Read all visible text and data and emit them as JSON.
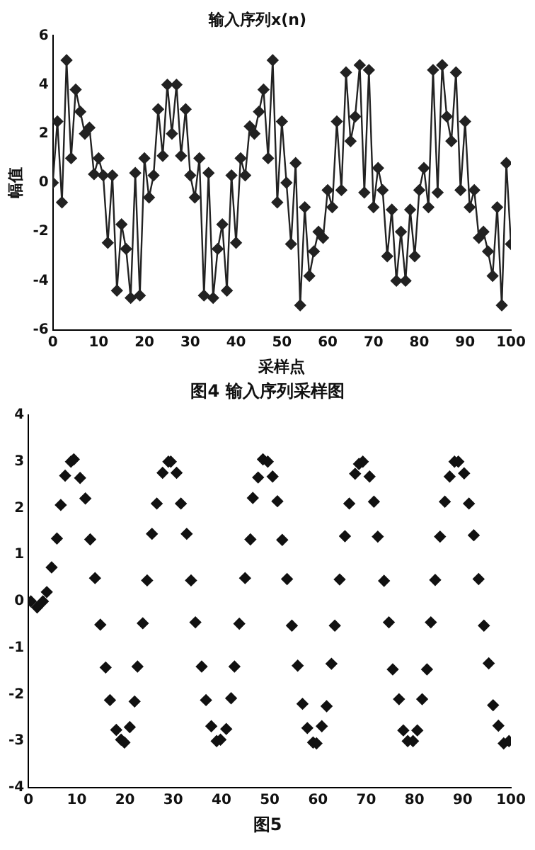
{
  "chart_data": [
    {
      "type": "line",
      "title": "输入序列x(n)",
      "xlabel": "采样点",
      "ylabel": "幅值",
      "annotations": [
        "图4 输入序列采样图"
      ],
      "color": "#222222",
      "marker": "diamond",
      "line_style": "solid",
      "x": [
        0,
        1,
        2,
        3,
        4,
        5,
        6,
        7,
        8,
        9,
        10,
        11,
        12,
        13,
        14,
        15,
        16,
        17,
        18,
        19,
        20,
        21,
        22,
        23,
        24,
        25,
        26,
        27,
        28,
        29,
        30,
        31,
        32,
        33,
        34,
        35,
        36,
        37,
        38,
        39,
        40,
        41,
        42,
        43,
        44,
        45,
        46,
        47,
        48,
        49,
        50,
        51,
        52,
        53,
        54,
        55,
        56,
        57,
        58,
        59,
        60,
        61,
        62,
        63,
        64,
        65,
        66,
        67,
        68,
        69,
        70,
        71,
        72,
        73,
        74,
        75,
        76,
        77,
        78,
        79,
        80,
        81,
        82,
        83,
        84,
        85,
        86,
        87,
        88,
        89,
        90,
        91,
        92,
        93,
        94,
        95,
        96,
        97,
        98,
        99,
        100
      ],
      "values": [
        0,
        2.5,
        -0.8,
        5,
        1,
        3.8,
        2.9,
        2,
        2.25,
        0.35,
        1,
        0.3,
        -2.45,
        0.3,
        -4.4,
        -1.7,
        -2.7,
        -4.7,
        0.4,
        -4.6,
        1,
        -0.6,
        0.3,
        3,
        1.1,
        4,
        2,
        4,
        1.1,
        3,
        0.3,
        -0.6,
        1,
        -4.6,
        0.4,
        -4.7,
        -2.7,
        -1.7,
        -4.4,
        0.3,
        -2.45,
        1,
        0.3,
        2.3,
        2,
        2.9,
        3.8,
        1,
        5,
        -0.8,
        2.5,
        0,
        -2.5,
        0.8,
        -5,
        -1,
        -3.8,
        -2.8,
        -2,
        -2.25,
        -0.3,
        -1,
        2.5,
        -0.3,
        4.5,
        1.7,
        2.7,
        4.8,
        -0.4,
        4.6,
        -1,
        0.6,
        -0.3,
        -3,
        -1.1,
        -4,
        -2,
        -4,
        -1.1,
        -3,
        -0.3,
        0.6,
        -1,
        4.6,
        -0.4,
        4.8,
        2.7,
        1.7,
        4.5,
        -0.3,
        2.5,
        -1,
        -0.3,
        -2.25,
        -2,
        -2.8,
        -3.8,
        -1,
        -5,
        0.8,
        -2.5
      ],
      "xlim": [
        0,
        100
      ],
      "xticks": [
        0,
        10,
        20,
        30,
        40,
        50,
        60,
        70,
        80,
        90,
        100
      ],
      "ylim": [
        -6,
        6
      ],
      "yticks": [
        -6,
        -4,
        -2,
        0,
        2,
        4,
        6
      ]
    },
    {
      "type": "scatter",
      "annotations": [
        "图5"
      ],
      "color": "#111111",
      "marker": "diamond",
      "x": [
        0.5,
        1.8,
        3,
        3.8,
        4.8,
        5.9,
        6.7,
        7.6,
        8.8,
        9.4,
        10.7,
        11.8,
        12.8,
        13.8,
        14.9,
        16,
        16.9,
        18.2,
        19.2,
        19.9,
        21,
        22,
        22.6,
        23.7,
        24.6,
        25.6,
        26.6,
        27.8,
        29,
        29.5,
        30.7,
        31.6,
        32.8,
        33.7,
        34.6,
        35.9,
        36.8,
        37.9,
        39,
        39.8,
        41,
        42,
        42.7,
        43.7,
        44.9,
        46,
        46.5,
        47.6,
        48.6,
        49.6,
        50.6,
        51.6,
        52.6,
        53.6,
        54.6,
        55.8,
        56.8,
        57.8,
        59,
        59.7,
        60.8,
        61.8,
        62.8,
        63.5,
        64.5,
        65.6,
        66.5,
        67.7,
        68.5,
        69.3,
        70.7,
        71.6,
        72.4,
        73.7,
        74.7,
        75.5,
        76.8,
        77.7,
        78.6,
        79.7,
        80.6,
        81.6,
        82.6,
        83.4,
        84.3,
        85.3,
        86.3,
        87.3,
        88.3,
        89.1,
        90.3,
        91.3,
        92.3,
        93.3,
        94.4,
        95.4,
        96.3,
        97.4,
        98.5,
        99.6
      ],
      "values": [
        0,
        -0.13,
        0,
        0.2,
        0.73,
        1.35,
        2.07,
        2.7,
        3,
        3.05,
        2.65,
        2.21,
        1.33,
        0.5,
        -0.5,
        -1.42,
        -2.12,
        -2.76,
        -2.97,
        -3.03,
        -2.7,
        -2.15,
        -1.4,
        -0.47,
        0.45,
        1.45,
        2.1,
        2.76,
        3,
        3,
        2.76,
        2.1,
        1.45,
        0.45,
        -0.45,
        -1.4,
        -2.12,
        -2.68,
        -3,
        -2.97,
        -2.74,
        -2.08,
        -1.4,
        -0.48,
        0.5,
        1.33,
        2.22,
        2.66,
        3.05,
        3,
        2.68,
        2.15,
        1.32,
        0.48,
        -0.52,
        -1.38,
        -2.2,
        -2.72,
        -3.03,
        -3.05,
        -2.68,
        -2.25,
        -1.34,
        -0.52,
        0.47,
        1.4,
        2.1,
        2.74,
        2.95,
        3,
        2.68,
        2.14,
        1.39,
        0.44,
        -0.45,
        -1.46,
        -2.1,
        -2.77,
        -3,
        -3,
        -2.77,
        -2.1,
        -1.46,
        -0.45,
        0.46,
        1.39,
        2.14,
        2.68,
        3,
        3,
        2.75,
        2.1,
        1.42,
        0.48,
        -0.52,
        -1.33,
        -2.23,
        -2.67,
        -3.05,
        -3
      ],
      "xlim": [
        0,
        100
      ],
      "xticks": [
        0,
        10,
        20,
        30,
        40,
        50,
        60,
        70,
        80,
        90,
        100
      ],
      "ylim": [
        -4,
        4
      ],
      "yticks": [
        -4,
        -3,
        -2,
        -1,
        0,
        1,
        2,
        3,
        4
      ]
    }
  ]
}
